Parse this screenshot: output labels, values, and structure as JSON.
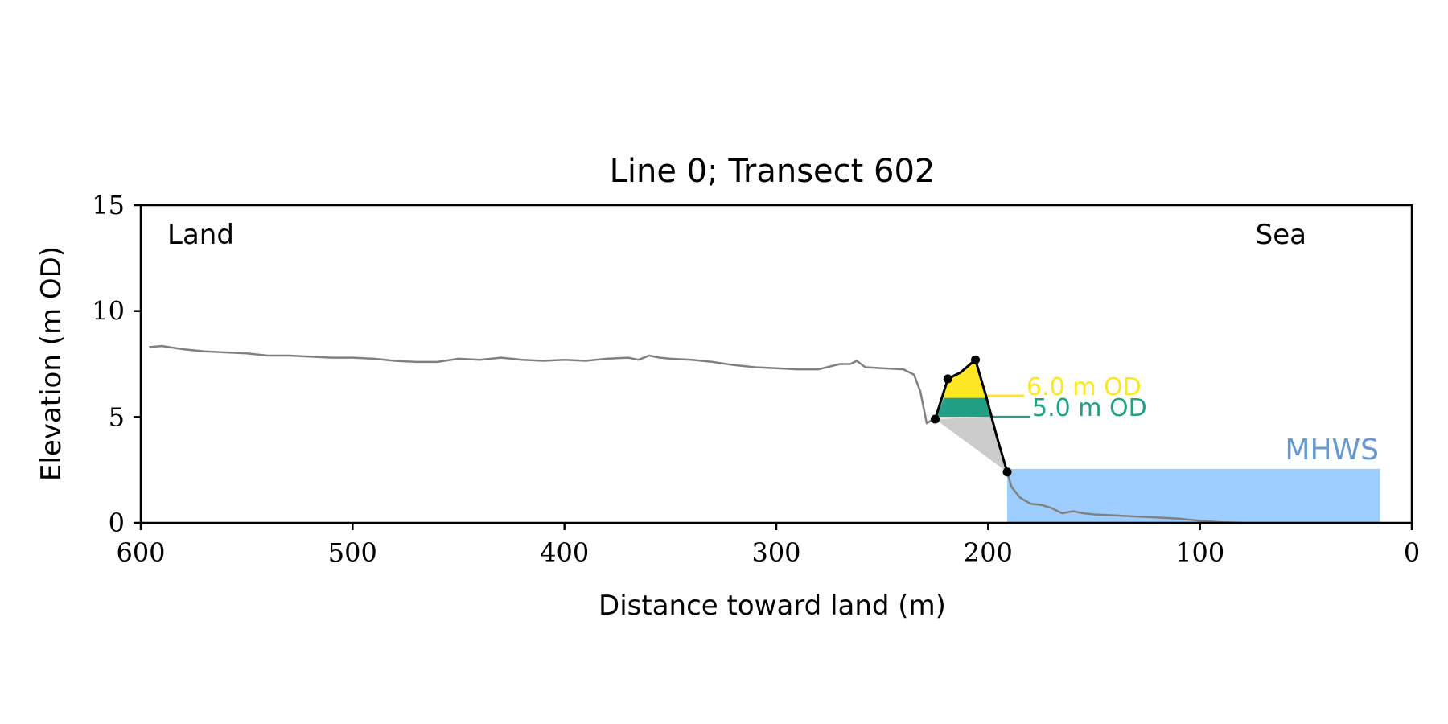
{
  "chart_data": {
    "type": "line",
    "title": "Line 0; Transect 602",
    "xlabel": "Distance toward land (m)",
    "ylabel": "Elevation (m OD)",
    "xlim": [
      600,
      0
    ],
    "ylim": [
      0,
      15
    ],
    "x_ticks": [
      600,
      500,
      400,
      300,
      200,
      100,
      0
    ],
    "y_ticks": [
      0,
      5,
      10,
      15
    ],
    "grid": false,
    "annotations": {
      "land": "Land",
      "sea": "Sea",
      "mhws_label": "MHWS",
      "level_6": "6.0 m OD",
      "level_5": "5.0 m OD"
    },
    "series": [
      {
        "kind": "profile",
        "color": "#808080",
        "points": [
          [
            596,
            8.3
          ],
          [
            590,
            8.35
          ],
          [
            580,
            8.2
          ],
          [
            570,
            8.1
          ],
          [
            560,
            8.05
          ],
          [
            550,
            8.0
          ],
          [
            540,
            7.9
          ],
          [
            530,
            7.9
          ],
          [
            520,
            7.85
          ],
          [
            510,
            7.8
          ],
          [
            500,
            7.8
          ],
          [
            490,
            7.75
          ],
          [
            480,
            7.65
          ],
          [
            470,
            7.6
          ],
          [
            460,
            7.6
          ],
          [
            450,
            7.75
          ],
          [
            440,
            7.7
          ],
          [
            430,
            7.8
          ],
          [
            420,
            7.7
          ],
          [
            410,
            7.65
          ],
          [
            400,
            7.7
          ],
          [
            390,
            7.65
          ],
          [
            380,
            7.75
          ],
          [
            370,
            7.8
          ],
          [
            365,
            7.7
          ],
          [
            360,
            7.9
          ],
          [
            355,
            7.8
          ],
          [
            350,
            7.75
          ],
          [
            340,
            7.7
          ],
          [
            330,
            7.6
          ],
          [
            320,
            7.45
          ],
          [
            310,
            7.35
          ],
          [
            300,
            7.3
          ],
          [
            290,
            7.25
          ],
          [
            280,
            7.25
          ],
          [
            270,
            7.5
          ],
          [
            265,
            7.5
          ],
          [
            262,
            7.65
          ],
          [
            258,
            7.35
          ],
          [
            250,
            7.3
          ],
          [
            240,
            7.25
          ],
          [
            235,
            7.0
          ],
          [
            232,
            6.2
          ],
          [
            229,
            4.7
          ],
          [
            226,
            4.9
          ]
        ]
      },
      {
        "kind": "profile",
        "color": "#808080",
        "points": [
          [
            191,
            2.4
          ],
          [
            189,
            1.7
          ],
          [
            185,
            1.2
          ],
          [
            180,
            0.9
          ],
          [
            175,
            0.85
          ],
          [
            170,
            0.7
          ],
          [
            165,
            0.45
          ],
          [
            160,
            0.55
          ],
          [
            155,
            0.45
          ],
          [
            150,
            0.4
          ],
          [
            140,
            0.35
          ],
          [
            130,
            0.3
          ],
          [
            120,
            0.25
          ],
          [
            110,
            0.2
          ],
          [
            100,
            0.1
          ],
          [
            90,
            0.03
          ],
          [
            80,
            0.0
          ]
        ]
      },
      {
        "kind": "cliff-outline",
        "color": "#000000",
        "points": [
          [
            225,
            4.9
          ],
          [
            219,
            6.8
          ],
          [
            213,
            7.1
          ],
          [
            206,
            7.7
          ],
          [
            201,
            6.0
          ],
          [
            196,
            4.1
          ],
          [
            191,
            2.4
          ]
        ],
        "markers": [
          [
            225,
            4.9
          ],
          [
            219,
            6.8
          ],
          [
            206,
            7.7
          ],
          [
            191,
            2.4
          ]
        ]
      }
    ],
    "fills": [
      {
        "name": "above-6m",
        "color": "#FDE725",
        "polygon": [
          [
            221,
            5.9
          ],
          [
            219,
            6.8
          ],
          [
            213,
            7.1
          ],
          [
            206,
            7.7
          ],
          [
            201,
            5.9
          ]
        ]
      },
      {
        "name": "5-6m",
        "color": "#21A085",
        "polygon": [
          [
            224.2,
            5.0
          ],
          [
            221,
            5.9
          ],
          [
            201,
            5.9
          ],
          [
            199,
            5.0
          ]
        ]
      },
      {
        "name": "wedge",
        "color": "#CCCCCC",
        "polygon": [
          [
            225,
            4.9
          ],
          [
            199,
            5.0
          ],
          [
            196,
            4.1
          ],
          [
            191,
            2.4
          ]
        ]
      },
      {
        "name": "mhws-water",
        "color": "#9ECEFF",
        "rect": {
          "x0": 191,
          "x1": 15,
          "y0": 0,
          "y1": 2.55
        }
      }
    ],
    "level_lines": [
      {
        "y": 6.0,
        "x0": 201,
        "x1": 183,
        "color": "#FDE725"
      },
      {
        "y": 5.0,
        "x0": 199,
        "x1": 180,
        "color": "#21A085"
      }
    ],
    "colors": {
      "mhws_text": "#6699CC",
      "level_6_text": "#FDE725",
      "level_5_text": "#21A085"
    }
  }
}
